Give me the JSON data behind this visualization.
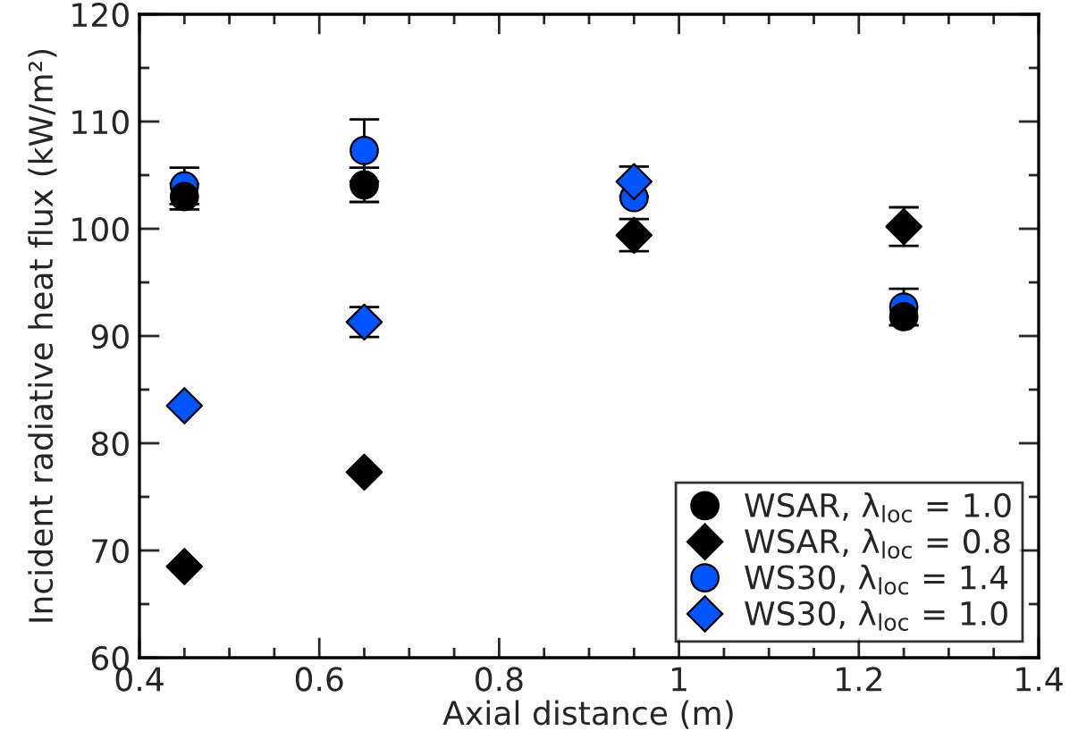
{
  "chart_data": {
    "type": "scatter",
    "xlabel": "Axial distance (m)",
    "ylabel": "Incident radiative heat flux (kW/m²)",
    "x": [
      0.45,
      0.65,
      0.95,
      1.25
    ],
    "series": [
      {
        "name": "WSAR, λ$_{loc}$ = 1.0",
        "color": "#000000",
        "marker": "circle",
        "values": [
          103.0,
          104.1,
          null,
          91.8
        ],
        "errors": [
          1.2,
          1.6,
          null,
          null
        ]
      },
      {
        "name": "WSAR, λ$_{loc}$ = 0.8",
        "color": "#000000",
        "marker": "diamond",
        "values": [
          68.5,
          77.3,
          99.4,
          100.2
        ],
        "errors": [
          null,
          null,
          1.5,
          1.8
        ]
      },
      {
        "name": "WS30, λ$_{loc}$ = 1.4",
        "color": "#0055ff",
        "marker": "circle",
        "values": [
          104.0,
          107.3,
          102.9,
          92.7
        ],
        "errors": [
          1.7,
          2.9,
          null,
          1.7
        ]
      },
      {
        "name": "WS30, λ$_{loc}$ = 1.0",
        "color": "#0055ff",
        "marker": "diamond",
        "values": [
          83.5,
          91.3,
          104.4,
          null
        ],
        "errors": [
          null,
          1.4,
          1.4,
          null
        ]
      }
    ],
    "xlim": [
      0.4,
      1.4
    ],
    "xticks": [
      0.4,
      {
        "value": 0.45,
        "label": null
      },
      {
        "value": 0.5,
        "label": null
      },
      {
        "value": 0.55,
        "label": null
      },
      0.6,
      {
        "value": 0.65,
        "label": null
      },
      {
        "value": 0.7,
        "label": null
      },
      {
        "value": 0.75,
        "label": null
      },
      0.8,
      {
        "value": 0.85,
        "label": null
      },
      {
        "value": 0.9,
        "label": null
      },
      {
        "value": 0.95,
        "label": null
      },
      1,
      {
        "value": 1.05,
        "label": null
      },
      {
        "value": 1.1,
        "label": null
      },
      {
        "value": 1.15,
        "label": null
      },
      1.2,
      {
        "value": 1.25,
        "label": null
      },
      {
        "value": 1.3,
        "label": null
      },
      {
        "value": 1.35,
        "label": null
      },
      1.4
    ],
    "ylim": [
      60,
      120
    ],
    "yticks": [
      60,
      {
        "value": 65,
        "label": null
      },
      70,
      {
        "value": 75,
        "label": null
      },
      80,
      {
        "value": 85,
        "label": null
      },
      90,
      {
        "value": 95,
        "label": null
      },
      100,
      {
        "value": 105,
        "label": null
      },
      110,
      {
        "value": 115,
        "label": null
      },
      120
    ],
    "legend": "bottom right",
    "grid": false
  }
}
